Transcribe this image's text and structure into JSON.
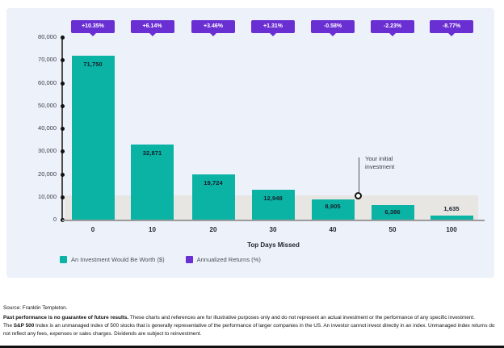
{
  "colors": {
    "bar_teal": "#0BB3A4",
    "badge_purple": "#6A2FD3",
    "band_gray": "#E7E6E3",
    "card_background": "#EDF1FA",
    "axis_gray": "#9B9B9B",
    "text_dark": "#15202B"
  },
  "chart_data": {
    "type": "bar",
    "title": "",
    "xlabel": "Top Days Missed",
    "ylabel": "",
    "ylim": [
      0,
      80000
    ],
    "ytick_labels": [
      "0",
      "10,000",
      "20,000",
      "30,000",
      "40,000",
      "50,000",
      "60,000",
      "70,000",
      "80,000"
    ],
    "grid": false,
    "legend_position": "bottom",
    "categories": [
      "0",
      "10",
      "20",
      "30",
      "40",
      "50",
      "100"
    ],
    "series": [
      {
        "name": "An Investment Would Be Worth ($)",
        "type": "bar",
        "values": [
          71750,
          32871,
          19724,
          12948,
          8905,
          6386,
          1635
        ],
        "labels": [
          "71,750",
          "32,871",
          "19,724",
          "12,948",
          "8,905",
          "6,386",
          "1,635"
        ]
      },
      {
        "name": "Annualized Returns (%)",
        "type": "callout-badge",
        "values": [
          10.35,
          6.14,
          3.46,
          1.31,
          -0.58,
          -2.23,
          -8.77
        ],
        "labels": [
          "+10.35%",
          "+6.14%",
          "+3.46%",
          "+1.31%",
          "-0.58%",
          "-2.23%",
          "-8.77%"
        ]
      }
    ],
    "annotations": [
      {
        "text": "Your initial investment",
        "y_value": 10000,
        "band": [
          0,
          10000
        ]
      }
    ]
  },
  "annotation": {
    "line1": "Your initial",
    "line2": "investment"
  },
  "footer": {
    "source": "Source: Franklin Templeton.",
    "para1_bold": "Past performance is no guarantee of future results.",
    "para1_rest": "These charts and references are for illustrative purposes only and do not represent an actual investment or the performance of any specific investment.",
    "para2_pre": "The",
    "para2_bold": "S&P 500",
    "para2_rest": "Index is an unmanaged index of 500 stocks that is generally representative of the performance of larger companies in the US. An investor cannot invest directly in an index. Unmanaged index returns do not reflect any fees, expenses or sales charges. Dividends are subject to reinvestment."
  }
}
